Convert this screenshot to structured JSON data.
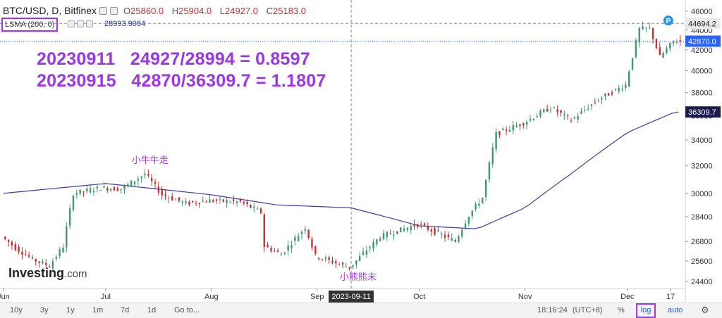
{
  "header": {
    "symbol": "BTC/USD, D, Bitfinex",
    "open_label": "O",
    "open": "25860.0",
    "high_label": "H",
    "high": "25904.0",
    "low_label": "L",
    "low": "24927.0",
    "close_label": "C",
    "close": "25183.0"
  },
  "indicator": {
    "label": "LSMA (200, 0)",
    "value": "28993.9064"
  },
  "annotation": {
    "line1": "20230911   24927/28994 = 0.8597",
    "line2": "20230915   42870/36309.7 = 1.1807"
  },
  "labels": {
    "bull": "小牛牛走",
    "bear": "小熊熊末"
  },
  "logo": {
    "main": "Investing",
    "suffix": ".com"
  },
  "toolbar": {
    "ranges": [
      "10y",
      "3y",
      "1y",
      "1m",
      "7d",
      "1d"
    ],
    "goto": "Go to...",
    "time": "18:16:24",
    "tz": "(UTC+8)",
    "percent": "%",
    "log": "log",
    "auto": "auto"
  },
  "colors": {
    "up": "#3d9970",
    "down": "#c53030",
    "lsma": "#3f3aa8",
    "accent": "#9b37e7",
    "price_badge": "#2962ff",
    "lsma_badge": "#1a1a4e"
  },
  "chart_data": {
    "type": "candlestick",
    "y_scale": "log",
    "ylim": [
      24000,
      46600
    ],
    "y_ticks": [
      24400,
      25600,
      26800,
      28400,
      30000,
      32000,
      34000,
      36000,
      38000,
      40000,
      42000,
      44000,
      46000
    ],
    "x_ticks": [
      "Jun",
      "Jul",
      "Aug",
      "Sep",
      "Oct",
      "Nov",
      "Dec",
      "17"
    ],
    "crosshair": {
      "x_label": "2023-09-11",
      "y_value": 44694.2,
      "y_label": "44694.2"
    },
    "price_line": {
      "value": 42870.0,
      "label": "42870.0"
    },
    "lsma_badge": {
      "value": 36309.7,
      "label": "36309.7"
    },
    "start_date": "2023-06-01",
    "end_date": "2023-12-17",
    "price_key_points": [
      [
        "2023-06-01",
        27100
      ],
      [
        "2023-06-05",
        26400
      ],
      [
        "2023-06-10",
        25700
      ],
      [
        "2023-06-15",
        25300
      ],
      [
        "2023-06-19",
        26500
      ],
      [
        "2023-06-22",
        30000
      ],
      [
        "2023-06-30",
        30400
      ],
      [
        "2023-07-06",
        30300
      ],
      [
        "2023-07-13",
        31400
      ],
      [
        "2023-07-18",
        29900
      ],
      [
        "2023-07-25",
        29300
      ],
      [
        "2023-08-01",
        29500
      ],
      [
        "2023-08-10",
        29400
      ],
      [
        "2023-08-16",
        28700
      ],
      [
        "2023-08-17",
        26500
      ],
      [
        "2023-08-22",
        26000
      ],
      [
        "2023-08-29",
        27700
      ],
      [
        "2023-09-01",
        25900
      ],
      [
        "2023-09-11",
        25200
      ],
      [
        "2023-09-20",
        27100
      ],
      [
        "2023-10-01",
        27900
      ],
      [
        "2023-10-12",
        26800
      ],
      [
        "2023-10-16",
        28500
      ],
      [
        "2023-10-20",
        29700
      ],
      [
        "2023-10-24",
        34500
      ],
      [
        "2023-11-01",
        35400
      ],
      [
        "2023-11-09",
        36700
      ],
      [
        "2023-11-15",
        35600
      ],
      [
        "2023-11-23",
        37400
      ],
      [
        "2023-12-01",
        38700
      ],
      [
        "2023-12-05",
        44100
      ],
      [
        "2023-12-08",
        44200
      ],
      [
        "2023-12-11",
        41300
      ],
      [
        "2023-12-15",
        42870
      ]
    ],
    "lsma_key_points": [
      [
        "2023-06-01",
        30000
      ],
      [
        "2023-07-01",
        30700
      ],
      [
        "2023-08-01",
        29900
      ],
      [
        "2023-08-20",
        29200
      ],
      [
        "2023-09-11",
        28994
      ],
      [
        "2023-10-01",
        27800
      ],
      [
        "2023-10-18",
        27600
      ],
      [
        "2023-11-01",
        29000
      ],
      [
        "2023-11-15",
        31500
      ],
      [
        "2023-12-01",
        34600
      ],
      [
        "2023-12-15",
        36309.7
      ]
    ],
    "series": [
      {
        "name": "BTC/USD",
        "values_ref": "price_key_points"
      },
      {
        "name": "LSMA (200, 0)",
        "values_ref": "lsma_key_points"
      }
    ]
  }
}
